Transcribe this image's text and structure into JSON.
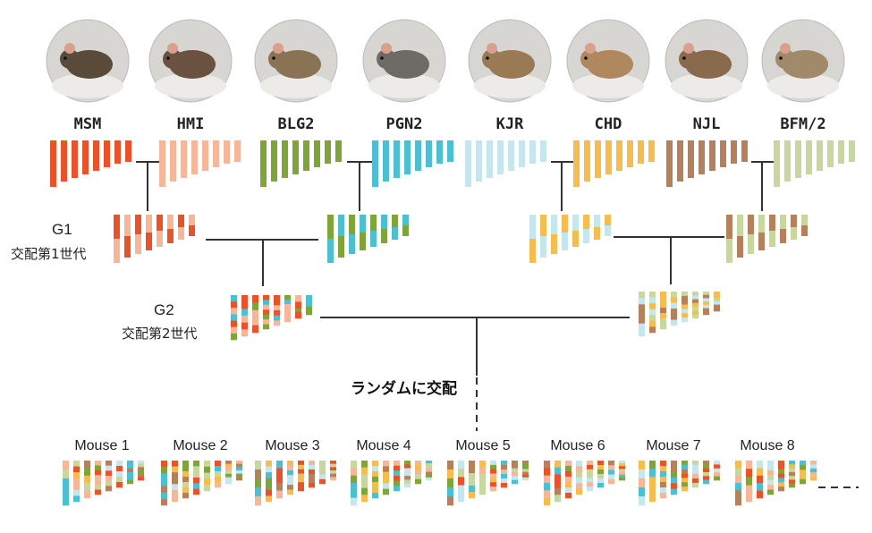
{
  "colors": {
    "MSM": "#e8532a",
    "HMI": "#f5b79a",
    "BLG2": "#7fa43a",
    "PGN2": "#4dbfd0",
    "KJR": "#c6e6ee",
    "CHD": "#f5bd4f",
    "NJL": "#b5805c",
    "BFM2": "#c8d6a0",
    "line": "#333333"
  },
  "strains": [
    {
      "label": "MSM",
      "color_key": "MSM",
      "icon": "mouse-photo-dark-brown"
    },
    {
      "label": "HMI",
      "color_key": "HMI",
      "icon": "mouse-photo-brown"
    },
    {
      "label": "BLG2",
      "color_key": "BLG2",
      "icon": "mouse-photo-agouti-with-ruler"
    },
    {
      "label": "PGN2",
      "color_key": "PGN2",
      "icon": "mouse-photo-gray"
    },
    {
      "label": "KJR",
      "color_key": "KJR",
      "icon": "mouse-photo-tan"
    },
    {
      "label": "CHD",
      "color_key": "CHD",
      "icon": "mouse-photo-light-tan"
    },
    {
      "label": "NJL",
      "color_key": "NJL",
      "icon": "mouse-photo-brown-on-scale"
    },
    {
      "label": "BFM/2",
      "color_key": "BFM2",
      "icon": "mouse-photo-standing"
    }
  ],
  "generations": {
    "g1": {
      "label": "G1",
      "sublabel": "交配第1世代"
    },
    "g2": {
      "label": "G2",
      "sublabel": "交配第2世代"
    }
  },
  "random_mating_label": "ランダムに交配",
  "offspring": [
    "Mouse 1",
    "Mouse 2",
    "Mouse 3",
    "Mouse 4",
    "Mouse 5",
    "Mouse 6",
    "Mouse 7",
    "Mouse 8"
  ]
}
